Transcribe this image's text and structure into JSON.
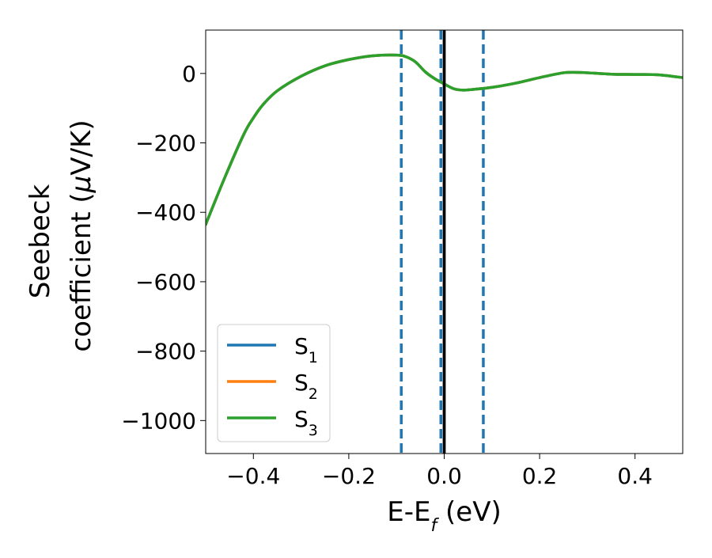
{
  "chart_data": {
    "type": "line",
    "xlabel": "E-E",
    "xlabel_sub": "f",
    "xlabel_unit": " (eV)",
    "ylabel_line1": "Seebeck",
    "ylabel_line2": "coefficient  (",
    "ylabel_mu": "μ",
    "ylabel_unit_tail": "V/K)",
    "xlim": [
      -0.5,
      0.5
    ],
    "ylim": [
      -1095,
      125
    ],
    "xticks": [
      -0.4,
      -0.2,
      0.0,
      0.2,
      0.4
    ],
    "xtick_labels": [
      "−0.4",
      "−0.2",
      "0.0",
      "0.2",
      "0.4"
    ],
    "yticks": [
      0,
      -200,
      -400,
      -600,
      -800,
      -1000
    ],
    "ytick_labels": [
      "0",
      "−200",
      "−400",
      "−600",
      "−800",
      "−1000"
    ],
    "grid": false,
    "legend_position": "bottom-left",
    "series": [
      {
        "name": "S",
        "name_sub": "1",
        "color": "#1f77b4",
        "x": [
          -0.5,
          -0.46,
          -0.42,
          -0.4,
          -0.38,
          -0.35,
          -0.3,
          -0.25,
          -0.2,
          -0.15,
          -0.1,
          -0.08,
          -0.06,
          -0.04,
          -0.02,
          0.0,
          0.02,
          0.04,
          0.06,
          0.1,
          0.15,
          0.2,
          0.25,
          0.28,
          0.3,
          0.35,
          0.4,
          0.45,
          0.5
        ],
        "y": [
          -435,
          -300,
          -175,
          -128,
          -90,
          -50,
          -8,
          22,
          40,
          51,
          53,
          48,
          33,
          5,
          -15,
          -30,
          -44,
          -48,
          -46,
          -40,
          -28,
          -12,
          2,
          3,
          2,
          -2,
          -3,
          -4,
          -12
        ]
      },
      {
        "name": "S",
        "name_sub": "2",
        "color": "#ff7f0e",
        "x": [
          -0.5,
          -0.46,
          -0.42,
          -0.4,
          -0.38,
          -0.35,
          -0.3,
          -0.25,
          -0.2,
          -0.15,
          -0.1,
          -0.08,
          -0.06,
          -0.04,
          -0.02,
          0.0,
          0.02,
          0.04,
          0.06,
          0.1,
          0.15,
          0.2,
          0.25,
          0.28,
          0.3,
          0.35,
          0.4,
          0.45,
          0.5
        ],
        "y": [
          -435,
          -300,
          -175,
          -128,
          -90,
          -50,
          -8,
          22,
          40,
          51,
          53,
          48,
          33,
          5,
          -15,
          -30,
          -44,
          -48,
          -46,
          -40,
          -28,
          -12,
          2,
          3,
          2,
          -2,
          -3,
          -4,
          -12
        ]
      },
      {
        "name": "S",
        "name_sub": "3",
        "color": "#2ca02c",
        "x": [
          -0.5,
          -0.46,
          -0.42,
          -0.4,
          -0.38,
          -0.35,
          -0.3,
          -0.25,
          -0.2,
          -0.15,
          -0.1,
          -0.08,
          -0.06,
          -0.04,
          -0.02,
          0.0,
          0.02,
          0.04,
          0.06,
          0.1,
          0.15,
          0.2,
          0.25,
          0.28,
          0.3,
          0.35,
          0.4,
          0.45,
          0.5
        ],
        "y": [
          -435,
          -300,
          -175,
          -128,
          -90,
          -50,
          -8,
          22,
          40,
          51,
          53,
          48,
          33,
          5,
          -15,
          -30,
          -44,
          -48,
          -46,
          -40,
          -28,
          -12,
          2,
          3,
          2,
          -2,
          -3,
          -4,
          -12
        ]
      }
    ],
    "vlines": [
      {
        "x": -0.09,
        "style": "dashed",
        "color": "#1f77b4"
      },
      {
        "x": -0.007,
        "style": "dashed",
        "color": "#1f77b4"
      },
      {
        "x": 0.0,
        "style": "solid",
        "color": "#000000"
      },
      {
        "x": 0.082,
        "style": "dashed",
        "color": "#1f77b4"
      }
    ]
  }
}
